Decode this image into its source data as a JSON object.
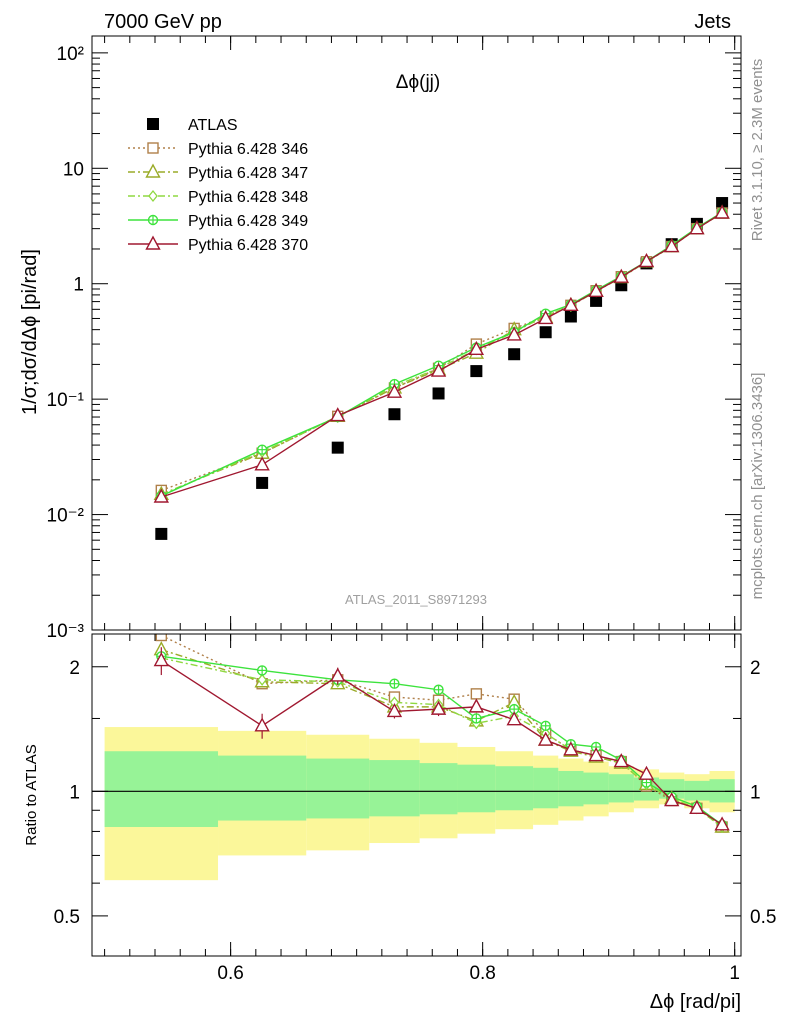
{
  "header": {
    "left": "7000 GeV pp",
    "right": "Jets"
  },
  "side_labels": {
    "rivet": "Rivet 3.1.10, ≥ 2.3M events",
    "mcplots": "mcplots.cern.ch [arXiv:1306.3436]"
  },
  "chart_data": {
    "type": "scatter",
    "title": "Δϕ(jj)",
    "analysis_label": "ATLAS_2011_S8971293",
    "ylabel": "1/σ;dσ/dΔϕ [pi/rad]",
    "ratio_ylabel": "Ratio to ATLAS",
    "xlabel": "Δϕ [rad/pi]",
    "xlim": [
      0.49,
      1.005
    ],
    "ylim": [
      0.001,
      140
    ],
    "yscale": "log",
    "ratio_ylim": [
      0.4,
      2.4
    ],
    "ratio_yscale": "log",
    "x_ticks": [
      "0.6",
      "0.8",
      "1"
    ],
    "x_tick_values": [
      0.6,
      0.8,
      1.0
    ],
    "y_ticks": [
      "10⁻³",
      "10⁻²",
      "10⁻¹",
      "1",
      "10",
      "10²"
    ],
    "y_tick_values": [
      0.001,
      0.01,
      0.1,
      1,
      10,
      100
    ],
    "ratio_ticks": [
      "0.5",
      "1",
      "2"
    ],
    "ratio_tick_values": [
      0.5,
      1,
      2
    ],
    "x": [
      0.545,
      0.625,
      0.685,
      0.73,
      0.765,
      0.795,
      0.825,
      0.85,
      0.87,
      0.89,
      0.91,
      0.93,
      0.95,
      0.97,
      0.99
    ],
    "bands": {
      "edges": [
        0.5,
        0.59,
        0.66,
        0.71,
        0.75,
        0.78,
        0.81,
        0.84,
        0.86,
        0.88,
        0.9,
        0.92,
        0.94,
        0.96,
        0.98,
        1.0
      ],
      "inner": [
        [
          0.82,
          1.25
        ],
        [
          0.85,
          1.22
        ],
        [
          0.86,
          1.2
        ],
        [
          0.87,
          1.19
        ],
        [
          0.88,
          1.17
        ],
        [
          0.89,
          1.16
        ],
        [
          0.9,
          1.15
        ],
        [
          0.91,
          1.14
        ],
        [
          0.92,
          1.12
        ],
        [
          0.93,
          1.11
        ],
        [
          0.94,
          1.1
        ],
        [
          0.95,
          1.08
        ],
        [
          0.96,
          1.07
        ],
        [
          0.95,
          1.06
        ],
        [
          0.94,
          1.07
        ]
      ],
      "outer": [
        [
          0.61,
          1.43
        ],
        [
          0.7,
          1.4
        ],
        [
          0.72,
          1.37
        ],
        [
          0.75,
          1.34
        ],
        [
          0.77,
          1.31
        ],
        [
          0.79,
          1.28
        ],
        [
          0.81,
          1.25
        ],
        [
          0.83,
          1.22
        ],
        [
          0.85,
          1.2
        ],
        [
          0.87,
          1.18
        ],
        [
          0.89,
          1.15
        ],
        [
          0.91,
          1.13
        ],
        [
          0.93,
          1.11
        ],
        [
          0.91,
          1.1
        ],
        [
          0.89,
          1.12
        ]
      ]
    },
    "series": [
      {
        "name": "ATLAS",
        "color": "#000000",
        "marker": "square-filled",
        "line": "none",
        "values": [
          0.0068,
          0.0188,
          0.038,
          0.074,
          0.112,
          0.175,
          0.245,
          0.38,
          0.52,
          0.71,
          0.97,
          1.5,
          2.2,
          3.3,
          5.0
        ]
      },
      {
        "name": "Pythia 6.428 346",
        "color": "#b0804a",
        "marker": "square-open",
        "line": "dotted",
        "values": [
          0.0162,
          0.034,
          0.071,
          0.125,
          0.185,
          0.3,
          0.41,
          0.52,
          0.65,
          0.87,
          1.15,
          1.55,
          2.1,
          3.0,
          4.1
        ],
        "ratio": [
          2.38,
          1.82,
          1.86,
          1.69,
          1.66,
          1.72,
          1.67,
          1.38,
          1.26,
          1.22,
          1.18,
          1.03,
          0.95,
          0.91,
          0.82
        ]
      },
      {
        "name": "Pythia 6.428 347",
        "color": "#9aab28",
        "marker": "triangle-open",
        "line": "dashdot",
        "values": [
          0.015,
          0.034,
          0.071,
          0.125,
          0.18,
          0.25,
          0.4,
          0.51,
          0.65,
          0.86,
          1.13,
          1.55,
          2.1,
          3.0,
          4.1
        ],
        "ratio": [
          2.2,
          1.84,
          1.82,
          1.6,
          1.6,
          1.48,
          1.64,
          1.33,
          1.25,
          1.21,
          1.17,
          1.04,
          0.96,
          0.91,
          0.82
        ]
      },
      {
        "name": "Pythia 6.428 348",
        "color": "#8fd840",
        "marker": "diamond-open",
        "line": "dashdot",
        "values": [
          0.0148,
          0.035,
          0.07,
          0.13,
          0.185,
          0.27,
          0.38,
          0.53,
          0.64,
          0.86,
          1.15,
          1.55,
          2.1,
          3.0,
          4.1
        ],
        "ratio": [
          2.1,
          1.86,
          1.84,
          1.64,
          1.62,
          1.46,
          1.52,
          1.38,
          1.26,
          1.22,
          1.17,
          1.04,
          0.96,
          0.91,
          0.82
        ]
      },
      {
        "name": "Pythia 6.428 349",
        "color": "#3de33d",
        "marker": "circle-plus",
        "line": "solid",
        "values": [
          0.0145,
          0.0365,
          0.07,
          0.135,
          0.195,
          0.28,
          0.38,
          0.55,
          0.66,
          0.88,
          1.16,
          1.56,
          2.15,
          3.05,
          4.15
        ],
        "ratio": [
          2.12,
          1.96,
          1.86,
          1.82,
          1.76,
          1.5,
          1.58,
          1.44,
          1.3,
          1.28,
          1.19,
          1.05,
          0.97,
          0.92,
          0.83
        ]
      },
      {
        "name": "Pythia 6.428 370",
        "color": "#a01830",
        "marker": "triangle-open",
        "line": "solid",
        "values": [
          0.0142,
          0.027,
          0.072,
          0.115,
          0.175,
          0.27,
          0.36,
          0.5,
          0.65,
          0.86,
          1.14,
          1.56,
          2.1,
          3.0,
          4.1
        ],
        "ratio": [
          2.07,
          1.44,
          1.9,
          1.56,
          1.58,
          1.6,
          1.49,
          1.33,
          1.26,
          1.22,
          1.18,
          1.1,
          0.95,
          0.91,
          0.83
        ],
        "ratio_err": [
          0.16,
          0.1,
          0.09,
          0.06,
          0.06,
          0.05,
          0.04,
          0.03,
          0.02,
          0.02,
          0.02,
          0.02,
          0.01,
          0.01,
          0.01
        ]
      }
    ]
  }
}
